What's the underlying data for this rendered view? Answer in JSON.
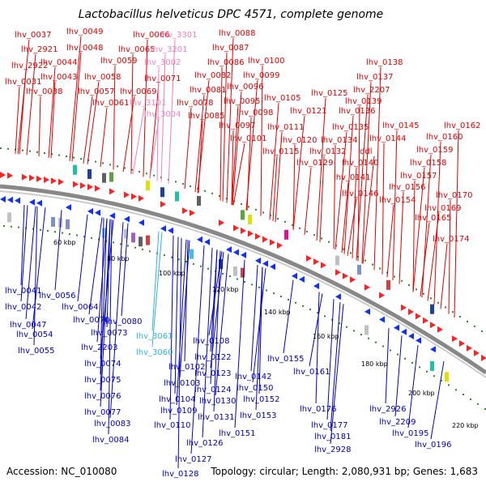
{
  "title": "Lactobacillus helveticus DPC 4571, complete genome",
  "accession": "Accession: NC_010080",
  "summary": "Topology: circular; Length: 2,080,931 bp; Genes: 1,683",
  "colors": {
    "forward_label": "#e00000",
    "reverse_label": "#0000c0",
    "pseudo_forward_label": "#f080c0",
    "pseudo_reverse_label": "#30b0e0",
    "forward_arrow": "#ff2020",
    "reverse_arrow": "#1030ff",
    "backbone": "#888888",
    "tick_dot": "#2a8a2a"
  },
  "kbp_ticks": [
    "60 kbp",
    "80 kbp",
    "100 kbp",
    "120 kbp",
    "140 kbp",
    "160 kbp",
    "180 kbp",
    "200 kbp",
    "220 kbp"
  ],
  "forward_labels": [
    "lhv_0037",
    "lhv_2921",
    "lhv_2922",
    "lhv_0031",
    "lhv_0038",
    "lhv_0049",
    "lhv_0048",
    "lhv_0044",
    "lhv_0043",
    "lhv_0059",
    "lhv_0058",
    "lhv_0057",
    "lhv_0061",
    "lhv_0066",
    "lhv_0065",
    "lhv_0069",
    "lhv_0071",
    "lhv_3301",
    "lhv_3201",
    "lhv_3002",
    "lhv_3101",
    "lhv_3004",
    "lhv_0088",
    "lhv_0087",
    "lhv_0086",
    "lhv_0082",
    "lhv_0081",
    "lhv_0078",
    "lhv_0085",
    "lhv_0100",
    "lhv_0099",
    "lhv_0096",
    "lhv_0095",
    "lhv_0098",
    "lhv_0097",
    "lhv_0101",
    "lhv_0105",
    "lhv_0111",
    "lhv_0115",
    "lhv_0120",
    "lhv_0121",
    "lhv_0125",
    "lhv_0129",
    "lhv_0132",
    "lhv_0134",
    "lhv_0135",
    "lhv_0136",
    "lhv_0141",
    "lhv_0140",
    "lhv_0139",
    "lhv_2207",
    "lhv_0137",
    "lhv_0138",
    "lhv_0145",
    "lhv_0144",
    "ddl",
    "lhv_0146",
    "lhv_0154",
    "lhv_0156",
    "lhv_0157",
    "lhv_0158",
    "lhv_0159",
    "lhv_0160",
    "lhv_0162",
    "lhv_0170",
    "lhv_0169",
    "lhv_0165",
    "lhv_0174"
  ],
  "reverse_labels": [
    "lhv_0041",
    "lhv_0042",
    "lhv_0047",
    "lhv_0054",
    "lhv_0055",
    "lhv_0056",
    "lhv_0064",
    "lhv_0070",
    "lhv_0073",
    "lhv_0080",
    "lhv_2203",
    "lhv_0074",
    "lhv_0075",
    "lhv_0076",
    "lhv_0077",
    "lhv_0083",
    "lhv_0084",
    "lhv_3061",
    "lhv_3060",
    "lhv_0108",
    "lhv_0102",
    "lhv_0122",
    "lhv_0103",
    "lhv_0123",
    "lhv_0104",
    "lhv_0124",
    "lhv_0109",
    "lhv_0130",
    "lhv_0110",
    "lhv_0131",
    "lhv_0126",
    "lhv_0127",
    "lhv_0128",
    "lhv_0142",
    "lhv_0155",
    "lhv_0150",
    "lhv_0152",
    "lhv_0153",
    "lhv_0151",
    "lhv_0161",
    "lhv_0176",
    "lhv_0177",
    "lhv_0181",
    "lhv_2928",
    "lhv_2926",
    "lhv_2209",
    "lhv_0195",
    "lhv_0196"
  ]
}
